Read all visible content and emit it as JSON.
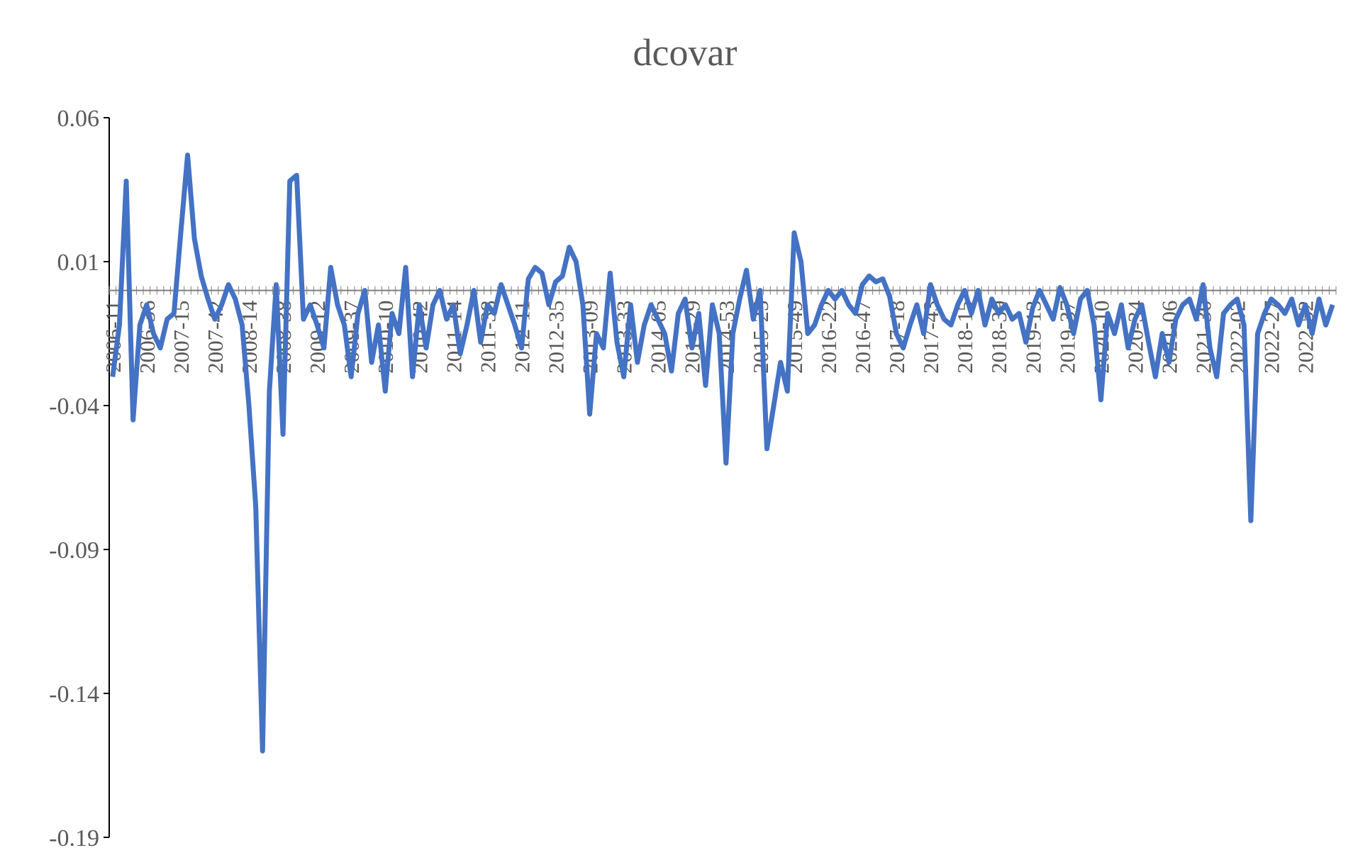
{
  "chart_data": {
    "type": "line",
    "title": "dcovar",
    "color": "#4472c4",
    "categories": [
      "2006-11",
      null,
      null,
      null,
      null,
      "2006-36",
      null,
      null,
      null,
      null,
      "2007-15",
      null,
      null,
      null,
      null,
      "2007-42",
      null,
      null,
      null,
      null,
      "2008-14",
      null,
      null,
      null,
      null,
      "2008-38",
      null,
      null,
      null,
      null,
      "2009-12",
      null,
      null,
      null,
      null,
      "2009-37",
      null,
      null,
      null,
      null,
      "2010-10",
      null,
      null,
      null,
      null,
      "2010-42",
      null,
      null,
      null,
      null,
      "2011-14",
      null,
      null,
      null,
      null,
      "2011-38",
      null,
      null,
      null,
      null,
      "2012-11",
      null,
      null,
      null,
      null,
      "2012-35",
      null,
      null,
      null,
      null,
      "2013-09",
      null,
      null,
      null,
      null,
      "2013-33",
      null,
      null,
      null,
      null,
      "2014-05",
      null,
      null,
      null,
      null,
      "2014-29",
      null,
      null,
      null,
      null,
      "2014-53",
      null,
      null,
      null,
      null,
      "2015-25",
      null,
      null,
      null,
      null,
      "2015-49",
      null,
      null,
      null,
      null,
      "2016-22",
      null,
      null,
      null,
      null,
      "2016-47",
      null,
      null,
      null,
      null,
      "2017-18",
      null,
      null,
      null,
      null,
      "2017-43",
      null,
      null,
      null,
      null,
      "2018-15",
      null,
      null,
      null,
      null,
      "2018-39",
      null,
      null,
      null,
      null,
      "2019-13",
      null,
      null,
      null,
      null,
      "2019-37",
      null,
      null,
      null,
      null,
      "2020-10",
      null,
      null,
      null,
      null,
      "2020-34",
      null,
      null,
      null,
      null,
      "2021-06",
      null,
      null,
      null,
      null,
      "2021-30",
      null,
      null,
      null,
      null,
      "2022-02",
      null,
      null,
      null,
      null,
      "2022-27",
      null,
      null,
      null,
      null,
      "2022-52",
      null,
      null,
      null,
      null
    ],
    "values": [
      -0.03,
      -0.012,
      0.038,
      -0.045,
      -0.012,
      -0.005,
      -0.015,
      -0.02,
      -0.01,
      -0.008,
      0.02,
      0.047,
      0.018,
      0.005,
      -0.003,
      -0.01,
      -0.005,
      0.002,
      -0.003,
      -0.012,
      -0.04,
      -0.075,
      -0.16,
      -0.035,
      0.002,
      -0.05,
      0.038,
      0.04,
      -0.01,
      -0.005,
      -0.012,
      -0.02,
      0.008,
      -0.005,
      -0.012,
      -0.03,
      -0.008,
      0.0,
      -0.025,
      -0.012,
      -0.035,
      -0.008,
      -0.015,
      0.008,
      -0.03,
      -0.005,
      -0.02,
      -0.005,
      0.0,
      -0.01,
      -0.005,
      -0.022,
      -0.012,
      0.0,
      -0.018,
      -0.005,
      -0.008,
      0.002,
      -0.005,
      -0.012,
      -0.02,
      0.004,
      0.008,
      0.006,
      -0.005,
      0.003,
      0.005,
      0.015,
      0.01,
      -0.005,
      -0.043,
      -0.015,
      -0.02,
      0.006,
      -0.018,
      -0.03,
      -0.005,
      -0.025,
      -0.012,
      -0.005,
      -0.01,
      -0.015,
      -0.028,
      -0.008,
      -0.003,
      -0.02,
      -0.008,
      -0.033,
      -0.005,
      -0.015,
      -0.06,
      -0.015,
      -0.003,
      0.007,
      -0.01,
      0.0,
      -0.055,
      -0.04,
      -0.025,
      -0.035,
      0.02,
      0.01,
      -0.015,
      -0.012,
      -0.005,
      0.0,
      -0.003,
      0.0,
      -0.005,
      -0.008,
      0.002,
      0.005,
      0.003,
      0.004,
      -0.002,
      -0.015,
      -0.02,
      -0.012,
      -0.005,
      -0.015,
      0.002,
      -0.005,
      -0.01,
      -0.012,
      -0.005,
      0.0,
      -0.008,
      0.0,
      -0.012,
      -0.003,
      -0.008,
      -0.005,
      -0.01,
      -0.008,
      -0.018,
      -0.006,
      0.0,
      -0.005,
      -0.01,
      0.001,
      -0.005,
      -0.015,
      -0.003,
      0.0,
      -0.012,
      -0.038,
      -0.008,
      -0.015,
      -0.005,
      -0.02,
      -0.01,
      -0.005,
      -0.018,
      -0.03,
      -0.015,
      -0.025,
      -0.01,
      -0.005,
      -0.003,
      -0.01,
      0.002,
      -0.02,
      -0.03,
      -0.008,
      -0.005,
      -0.003,
      -0.012,
      -0.08,
      -0.015,
      -0.008,
      -0.003,
      -0.005,
      -0.008,
      -0.003,
      -0.012,
      -0.005,
      -0.015,
      -0.003,
      -0.012,
      -0.005
    ],
    "ylim": [
      -0.19,
      0.06
    ],
    "yticks": [
      -0.19,
      -0.14,
      -0.09,
      -0.04,
      0.01,
      0.06
    ]
  }
}
